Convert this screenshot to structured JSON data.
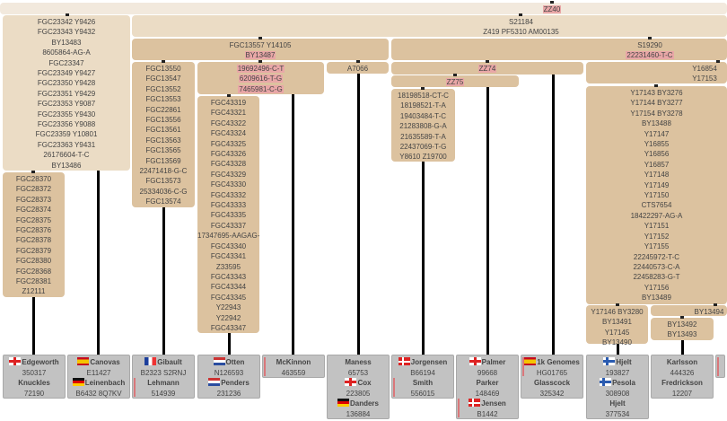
{
  "colors": {
    "highlight": "#e9a7a7",
    "node_light": "#ebdcc5",
    "node_mid": "#dcc29f",
    "card": "#c2c2c2",
    "branch_line": "#000000",
    "private_marker": "#d9777a"
  },
  "nodes": [
    {
      "id": "zz40",
      "lines": [
        "ZZ40"
      ],
      "highlighted": [
        "ZZ40"
      ]
    },
    {
      "id": "fgc23342",
      "lines": [
        "FGC23342 Y9426",
        "FGC23343 Y9432",
        "BY13483",
        "8605864-AG-A",
        "FGC23347",
        "FGC23349 Y9427",
        "FGC23350 Y9428",
        "FGC23351 Y9429",
        "FGC23353 Y9087",
        "FGC23355 Y9430",
        "FGC23356 Y9088",
        "FGC23359 Y10801",
        "FGC23363 Y9431",
        "26176604-T-C",
        "BY13486"
      ],
      "highlighted": []
    },
    {
      "id": "s21184",
      "lines": [
        "S21184",
        "Z419 PF5310 AM00135"
      ],
      "highlighted": []
    },
    {
      "id": "fgc13557",
      "lines": [
        "FGC13557 Y14105",
        "BY13487"
      ],
      "highlighted": [
        "BY13487"
      ]
    },
    {
      "id": "s19290",
      "lines": [
        "S19290",
        "22231460-T-C"
      ],
      "highlighted": [
        "22231460-T-C"
      ]
    },
    {
      "id": "fgc13550",
      "lines": [
        "FGC13550",
        "FGC13547",
        "FGC13552",
        "FGC13553",
        "FGC22861",
        "FGC13556",
        "FGC13561",
        "FGC13563",
        "FGC13565",
        "FGC13569",
        "22471418-G-C",
        "FGC13573",
        "25334036-C-G",
        "FGC13574"
      ],
      "highlighted": []
    },
    {
      "id": "19692496",
      "lines": [
        "19692496-C-T",
        "6209616-T-G",
        "7465981-C-G"
      ],
      "highlighted": [
        "19692496-C-T",
        "6209616-T-G",
        "7465981-C-G"
      ]
    },
    {
      "id": "a7066",
      "lines": [
        "A7066"
      ],
      "highlighted": []
    },
    {
      "id": "zz74",
      "lines": [
        "ZZ74"
      ],
      "highlighted": [
        "ZZ74"
      ]
    },
    {
      "id": "y16854",
      "lines": [
        "Y16854",
        "Y17153"
      ],
      "highlighted": []
    },
    {
      "id": "zz75",
      "lines": [
        "ZZ75"
      ],
      "highlighted": [
        "ZZ75"
      ]
    },
    {
      "id": "fgc43319",
      "lines": [
        "FGC43319",
        "FGC43321",
        "FGC43322",
        "FGC43324",
        "FGC43325",
        "FGC43326",
        "FGC43328",
        "FGC43329",
        "FGC43330",
        "FGC43332",
        "FGC43333",
        "FGC43335",
        "FGC43337",
        "17347695-AAGAG-",
        "FGC43340",
        "FGC43341",
        "Z33595",
        "FGC43343",
        "FGC43344",
        "FGC43345",
        "Y22943",
        "Y22942",
        "FGC43347"
      ],
      "highlighted": []
    },
    {
      "id": "18198518",
      "lines": [
        "18198518-CT-C",
        "18198521-T-A",
        "19403484-T-C",
        "21283808-G-A",
        "21635589-T-A",
        "22437069-T-G",
        "Y8610 Z19700"
      ],
      "highlighted": []
    },
    {
      "id": "y17143",
      "lines": [
        "Y17143 BY3276",
        "Y17144 BY3277",
        "Y17154 BY3278",
        "BY13488",
        "Y17147",
        "Y16855",
        "Y16856",
        "Y16857",
        "Y17148",
        "Y17149",
        "Y17150",
        "CTS7654",
        "18422297-AG-A",
        "Y17151",
        "Y17152",
        "Y17155",
        "22245972-T-C",
        "22440573-C-A",
        "22458283-G-T",
        "Y17156",
        "BY13489"
      ],
      "highlighted": []
    },
    {
      "id": "fgc28370",
      "lines": [
        "FGC28370",
        "FGC28372",
        "FGC28373",
        "FGC28374",
        "FGC28375",
        "FGC28376",
        "FGC28378",
        "FGC28379",
        "FGC28380",
        "FGC28368",
        "FGC28381",
        "Z12111"
      ],
      "highlighted": []
    },
    {
      "id": "y17146",
      "lines": [
        "Y17146 BY3280",
        "BY13491",
        "Y17145",
        "BY13490"
      ],
      "highlighted": []
    },
    {
      "id": "by13494",
      "lines": [
        "BY13494"
      ],
      "highlighted": []
    },
    {
      "id": "by13492",
      "lines": [
        "BY13492",
        "BY13493"
      ],
      "highlighted": []
    }
  ],
  "samples": [
    {
      "entries": [
        {
          "flag": "england",
          "name": "Edgeworth",
          "kit": "350317"
        },
        {
          "flag": "",
          "name": "Knuckles",
          "kit": "72190"
        }
      ]
    },
    {
      "entries": [
        {
          "flag": "spain",
          "name": "Canovas",
          "kit": "E11427"
        },
        {
          "flag": "germany",
          "name": "Leinenbach",
          "kit": "B6432 8Q7KV"
        }
      ]
    },
    {
      "entries": [
        {
          "flag": "france",
          "name": "Gibault",
          "kit": "B2323 S2RNJ"
        },
        {
          "flag": "",
          "name": "Lehmann",
          "kit": "514939",
          "private": true
        }
      ]
    },
    {
      "entries": [
        {
          "flag": "netherlands",
          "name": "Otten",
          "kit": "N126593"
        },
        {
          "flag": "netherlands",
          "name": "Penders",
          "kit": "231236"
        }
      ]
    },
    {
      "entries": [
        {
          "flag": "",
          "name": "McKinnon",
          "kit": "463559",
          "private": true
        }
      ]
    },
    {
      "entries": [
        {
          "flag": "",
          "name": "Maness",
          "kit": "65753"
        },
        {
          "flag": "england",
          "name": "Cox",
          "kit": "223805"
        },
        {
          "flag": "germany",
          "name": "Danders",
          "kit": "136884"
        }
      ]
    },
    {
      "entries": [
        {
          "flag": "denmark",
          "name": "Jorgensen",
          "kit": "B66194"
        },
        {
          "flag": "",
          "name": "Smith",
          "kit": "556015",
          "private": true
        }
      ]
    },
    {
      "entries": [
        {
          "flag": "england",
          "name": "Palmer",
          "kit": "99668"
        },
        {
          "flag": "",
          "name": "Parker",
          "kit": "148469"
        },
        {
          "flag": "denmark",
          "name": "Jensen",
          "kit": "B1442",
          "private": true
        }
      ]
    },
    {
      "entries": [
        {
          "flag": "spain",
          "name": "1k Genomes",
          "kit": "HG01765",
          "private": true
        },
        {
          "flag": "",
          "name": "Glasscock",
          "kit": "325342"
        }
      ]
    },
    {
      "entries": [
        {
          "flag": "finland",
          "name": "Hjelt",
          "kit": "193827"
        },
        {
          "flag": "finland",
          "name": "Pesola",
          "kit": "308908"
        },
        {
          "flag": "",
          "name": "Hjelt",
          "kit": "377534"
        }
      ]
    },
    {
      "entries": [
        {
          "flag": "",
          "name": "Karlsson",
          "kit": "444326"
        },
        {
          "flag": "",
          "name": "Fredrickson",
          "kit": "12207"
        }
      ]
    },
    {
      "entries": [
        {
          "flag": "",
          "name": "",
          "kit": "",
          "private": true
        }
      ]
    }
  ]
}
